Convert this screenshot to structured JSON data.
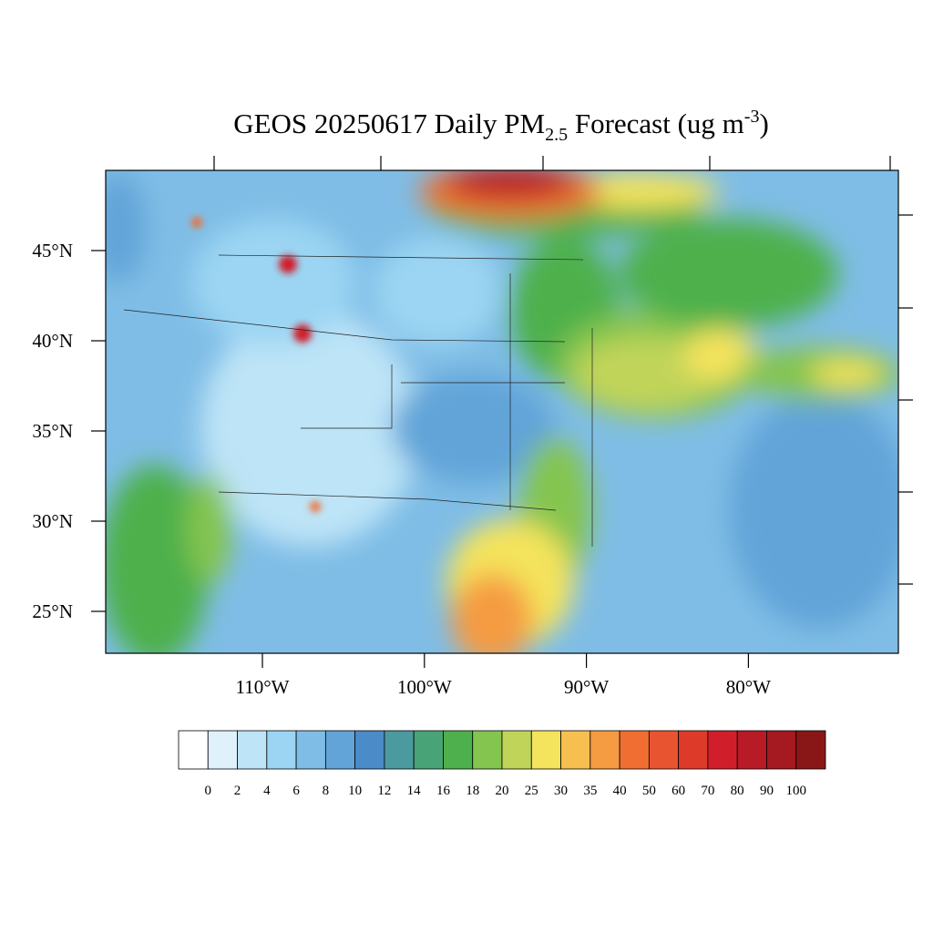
{
  "title": {
    "main": "GEOS 20250617 Daily PM",
    "sub": "2.5",
    "mid": " Forecast (ug m",
    "sup": "-3",
    "end": ")"
  },
  "lat_ticks": [
    {
      "value": 45,
      "label": "45°N"
    },
    {
      "value": 40,
      "label": "40°N"
    },
    {
      "value": 35,
      "label": "35°N"
    },
    {
      "value": 30,
      "label": "30°N"
    },
    {
      "value": 25,
      "label": "25°N"
    }
  ],
  "lon_ticks": [
    {
      "value": 110,
      "label": "110°W"
    },
    {
      "value": 100,
      "label": "100°W"
    },
    {
      "value": 90,
      "label": "90°W"
    },
    {
      "value": 80,
      "label": "80°W"
    }
  ],
  "colorbar": {
    "levels": [
      0,
      2,
      4,
      6,
      8,
      10,
      12,
      14,
      16,
      18,
      20,
      25,
      30,
      35,
      40,
      50,
      60,
      70,
      80,
      90,
      100
    ],
    "colors": [
      "#ffffff",
      "#dff1fb",
      "#bde4f7",
      "#9bd5f3",
      "#7fbde6",
      "#62a4d8",
      "#4a8bc8",
      "#4a9aa0",
      "#48a477",
      "#4eb04c",
      "#84c54f",
      "#c1d45a",
      "#f4e35c",
      "#f6bf4f",
      "#f59b42",
      "#f06e32",
      "#e95430",
      "#de3a2a",
      "#d01f2b",
      "#b81a26",
      "#a41a20",
      "#8a1718"
    ]
  }
}
